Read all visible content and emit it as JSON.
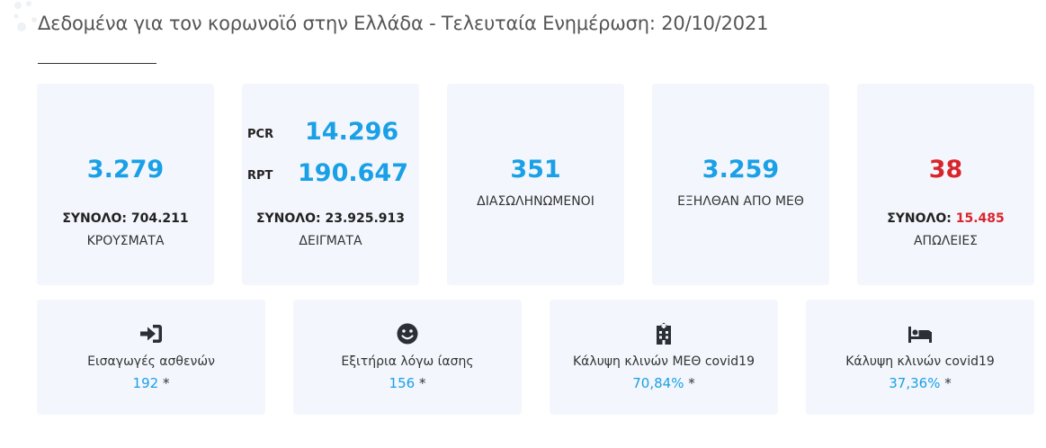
{
  "header": {
    "title": "Δεδομένα για τον κορωνοϊό στην Ελλάδα - Τελευταία Ενημέρωση: 20/10/2021"
  },
  "colors": {
    "accent": "#1aa0e6",
    "danger": "#d8252b",
    "card_bg": "#f3f6fc"
  },
  "cards": {
    "cases": {
      "value": "3.279",
      "total": "ΣΥΝΟΛΟ: 704.211",
      "caption": "ΚΡΟΥΣΜΑΤΑ"
    },
    "tests": {
      "pcr_label": "PCR",
      "pcr_value": "14.296",
      "rpt_label": "RPT",
      "rpt_value": "190.647",
      "total": "ΣΥΝΟΛΟ: 23.925.913",
      "caption": "ΔΕΙΓΜΑΤΑ"
    },
    "intubated": {
      "value": "351",
      "caption": "ΔΙΑΣΩΛΗΝΩΜΕΝΟΙ"
    },
    "icu_discharged": {
      "value": "3.259",
      "caption": "ΕΞΗΛΘΑΝ ΑΠΟ ΜΕΘ"
    },
    "deaths": {
      "value": "38",
      "total_label": "ΣΥΝΟΛΟ:",
      "total_value": "15.485",
      "caption": "ΑΠΩΛΕΙΕΣ"
    }
  },
  "stats": {
    "admissions": {
      "icon": "sign-in-icon",
      "caption": "Εισαγωγές ασθενών",
      "value": "192",
      "suffix": "*"
    },
    "discharges": {
      "icon": "smile-icon",
      "caption": "Εξιτήρια λόγω ίασης",
      "value": "156",
      "suffix": "*"
    },
    "icu_beds": {
      "icon": "hospital-icon",
      "caption": "Κάλυψη κλινών ΜΕΘ covid19",
      "value": "70,84%",
      "suffix": "*"
    },
    "beds": {
      "icon": "bed-icon",
      "caption": "Κάλυψη κλινών covid19",
      "value": "37,36%",
      "suffix": "*"
    }
  }
}
